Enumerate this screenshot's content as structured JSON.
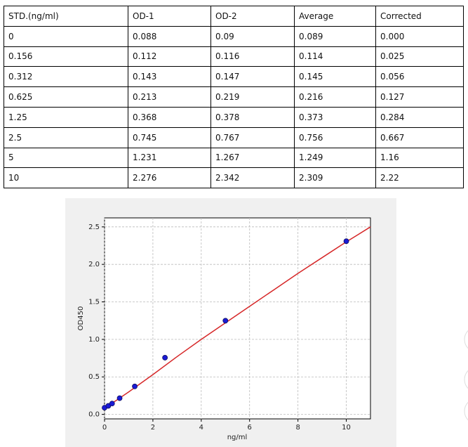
{
  "table": {
    "header": [
      "STD.(ng/ml)",
      "OD-1",
      "OD-2",
      "Average",
      "Corrected"
    ],
    "rows": [
      [
        "0",
        "0.088",
        "0.09",
        "0.089",
        "0.000"
      ],
      [
        "0.156",
        "0.112",
        "0.116",
        "0.114",
        "0.025"
      ],
      [
        "0.312",
        "0.143",
        "0.147",
        "0.145",
        "0.056"
      ],
      [
        "0.625",
        "0.213",
        "0.219",
        "0.216",
        "0.127"
      ],
      [
        "1.25",
        "0.368",
        "0.378",
        "0.373",
        "0.284"
      ],
      [
        "2.5",
        "0.745",
        "0.767",
        "0.756",
        "0.667"
      ],
      [
        "5",
        "1.231",
        "1.267",
        "1.249",
        "1.16"
      ],
      [
        "10",
        "2.276",
        "2.342",
        "2.309",
        "2.22"
      ]
    ]
  },
  "chart_data": {
    "type": "scatter",
    "x_label": "ng/ml",
    "y_label": "OD450",
    "x": [
      0,
      0.156,
      0.312,
      0.625,
      1.25,
      2.5,
      5,
      10
    ],
    "values": [
      0.089,
      0.114,
      0.145,
      0.216,
      0.373,
      0.756,
      1.249,
      2.309
    ],
    "color": "#1a1ad6",
    "fit": {
      "x": [
        0,
        1,
        2,
        3,
        4,
        5,
        6,
        7,
        8,
        9,
        10,
        11
      ],
      "values": [
        0.08,
        0.3,
        0.53,
        0.77,
        1.0,
        1.22,
        1.44,
        1.66,
        1.88,
        2.09,
        2.3,
        2.5
      ],
      "color": "#d62728"
    },
    "xlim": [
      0,
      11
    ],
    "ylim": [
      -0.06,
      2.62
    ],
    "xticks": [
      0,
      2,
      4,
      6,
      8,
      10
    ],
    "yticks": [
      {
        "value": 0,
        "label": "0.0"
      },
      0.5,
      {
        "value": 1,
        "label": "1.0"
      },
      1.5,
      {
        "value": 2,
        "label": "2.0"
      },
      2.5
    ],
    "grid": true
  }
}
